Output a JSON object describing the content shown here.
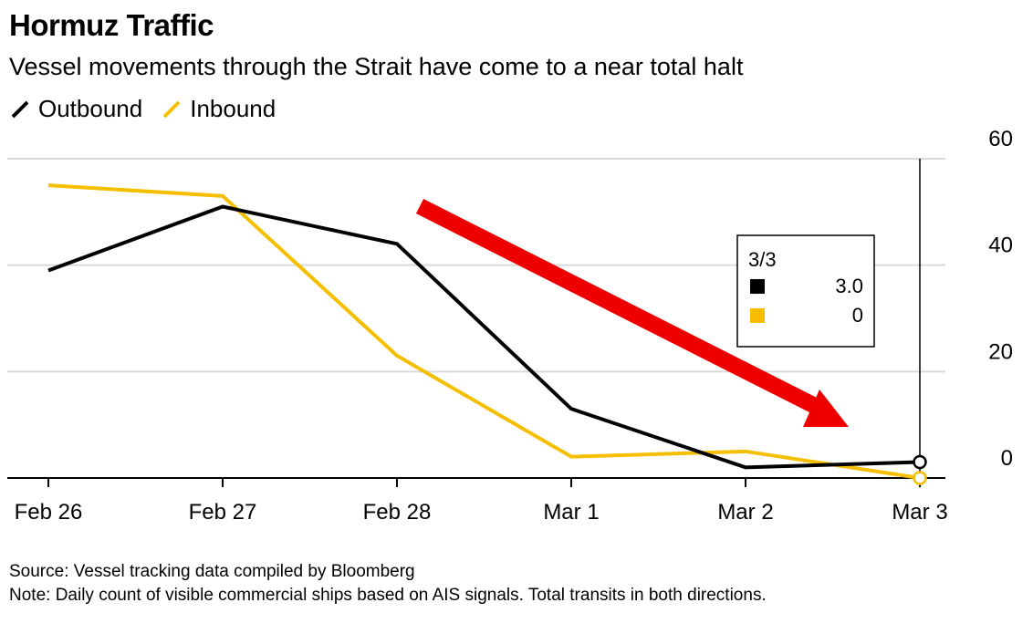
{
  "title": "Hormuz Traffic",
  "subtitle": "Vessel movements through the Strait have come to a near total halt",
  "legend": [
    {
      "label": "Outbound",
      "color": "#000000"
    },
    {
      "label": "Inbound",
      "color": "#f5bf00"
    }
  ],
  "chart_data": {
    "type": "line",
    "categories": [
      "Feb 26",
      "Feb 27",
      "Feb 28",
      "Mar 1",
      "Mar 2",
      "Mar 3"
    ],
    "series": [
      {
        "name": "Outbound",
        "color": "#000000",
        "values": [
          39,
          51,
          44,
          13,
          2,
          3
        ]
      },
      {
        "name": "Inbound",
        "color": "#f5bf00",
        "values": [
          55,
          53,
          23,
          4,
          5,
          0
        ]
      }
    ],
    "ylim": [
      0,
      60
    ],
    "yticks": [
      0,
      20,
      40,
      60
    ],
    "y_axis_side": "right",
    "grid": true,
    "legend_position": "top-left",
    "tooltip": {
      "date": "3/3",
      "rows": [
        {
          "series": "Outbound",
          "color": "#000000",
          "value": "3.0"
        },
        {
          "series": "Inbound",
          "color": "#f5bf00",
          "value": "0"
        }
      ]
    },
    "annotation": {
      "type": "arrow",
      "color": "#ee0000",
      "direction": "down-right"
    }
  },
  "footer": {
    "source": "Source: Vessel tracking data compiled by Bloomberg",
    "note": "Note: Daily count of visible commercial ships based on AIS signals. Total transits in both directions."
  }
}
